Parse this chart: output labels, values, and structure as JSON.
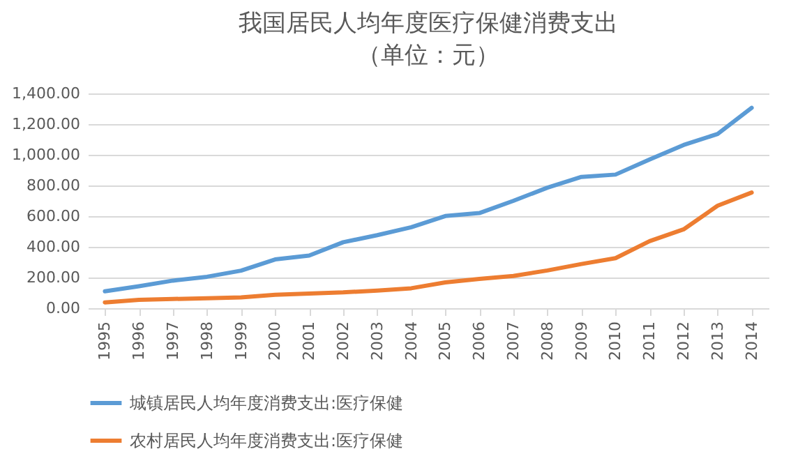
{
  "chart_data": {
    "type": "line",
    "title": "我国居民人均年度医疗保健消费支出",
    "subtitle": "（单位：元）",
    "categories": [
      "1995",
      "1996",
      "1997",
      "1998",
      "1999",
      "2000",
      "2001",
      "2002",
      "2003",
      "2004",
      "2005",
      "2006",
      "2007",
      "2008",
      "2009",
      "2010",
      "2011",
      "2012",
      "2013",
      "2014"
    ],
    "series": [
      {
        "name": "城镇居民人均年度消费支出:医疗保健",
        "color": "#5b9bd5",
        "values": [
          110,
          143,
          180,
          205,
          245,
          318,
          343,
          430,
          476,
          528,
          601,
          620,
          700,
          786,
          856,
          871,
          969,
          1064,
          1136,
          1306
        ]
      },
      {
        "name": "农村居民人均年度消费支出:医疗保健",
        "color": "#ed7d31",
        "values": [
          38,
          55,
          60,
          65,
          70,
          87,
          96,
          103,
          115,
          130,
          168,
          191,
          210,
          246,
          288,
          326,
          437,
          514,
          668,
          754
        ]
      }
    ],
    "ylim": [
      0,
      1400
    ],
    "yticks": [
      {
        "value": 0,
        "label": "0.00"
      },
      {
        "value": 200,
        "label": "200.00"
      },
      {
        "value": 400,
        "label": "400.00"
      },
      {
        "value": 600,
        "label": "600.00"
      },
      {
        "value": 800,
        "label": "800.00"
      },
      {
        "value": 1000,
        "label": "1,000.00"
      },
      {
        "value": 1200,
        "label": "1,200.00"
      },
      {
        "value": 1400,
        "label": "1,400.00"
      }
    ],
    "grid": "y",
    "legend": "bottom",
    "marker": "none",
    "line_style": "solid"
  }
}
